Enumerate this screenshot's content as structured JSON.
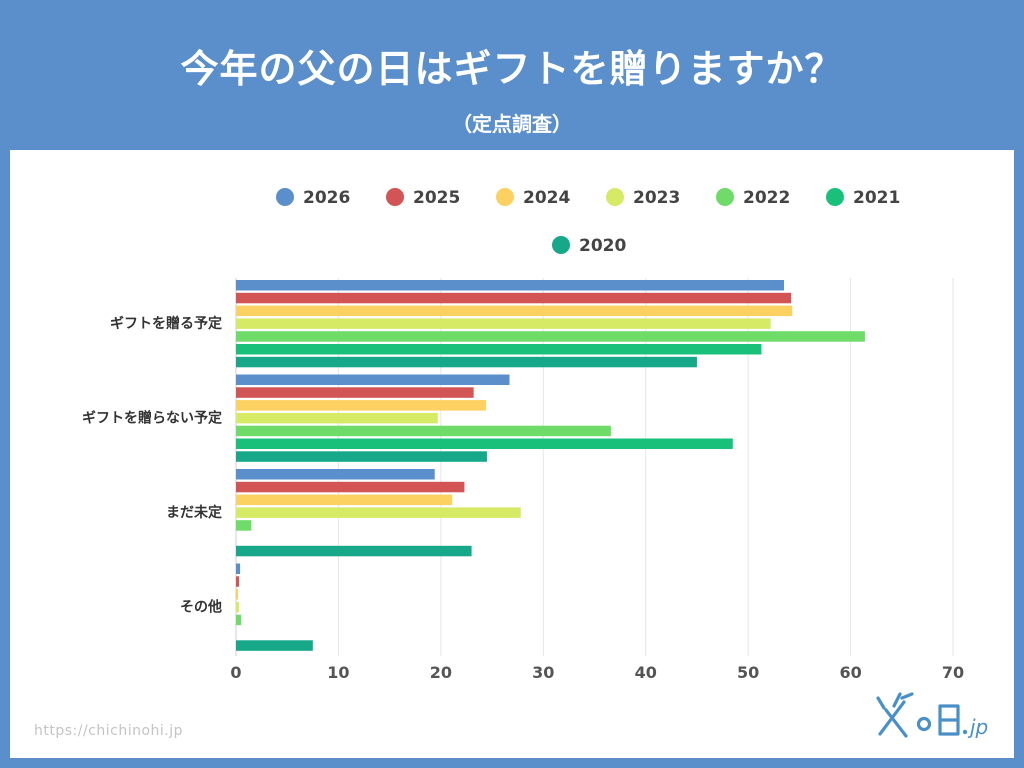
{
  "header": {
    "title": "今年の父の日はギフトを贈りますか？",
    "subtitle": "（定点調査）"
  },
  "footer": {
    "url": "https://chichinohi.jp",
    "logo_text": "父の日.jp"
  },
  "colors": {
    "background": "#5b8fcb",
    "card": "#ffffff",
    "grid": "#e6e6e6"
  },
  "chart_data": {
    "type": "bar",
    "orientation": "horizontal",
    "title": "",
    "xlabel": "",
    "ylabel": "",
    "xlim": [
      0,
      70
    ],
    "ticks": [
      0,
      10,
      20,
      30,
      40,
      50,
      60,
      70
    ],
    "grid": true,
    "legend_position": "top",
    "categories": [
      "ギフトを贈る予定",
      "ギフトを贈らない予定",
      "まだ未定",
      "その他"
    ],
    "series": [
      {
        "name": "2026",
        "color": "#5b8fcb",
        "values": [
          53.5,
          26.7,
          19.4,
          0.4
        ]
      },
      {
        "name": "2025",
        "color": "#d35454",
        "values": [
          54.2,
          23.2,
          22.3,
          0.3
        ]
      },
      {
        "name": "2024",
        "color": "#fcd061",
        "values": [
          54.3,
          24.4,
          21.1,
          0.2
        ]
      },
      {
        "name": "2023",
        "color": "#d6ea66",
        "values": [
          52.2,
          19.7,
          27.8,
          0.3
        ]
      },
      {
        "name": "2022",
        "color": "#6fdb68",
        "values": [
          61.4,
          36.6,
          1.5,
          0.5
        ]
      },
      {
        "name": "2021",
        "color": "#19c079",
        "values": [
          51.3,
          48.5,
          0,
          0
        ]
      },
      {
        "name": "2020",
        "color": "#17a88a",
        "values": [
          45.0,
          24.5,
          23.0,
          7.5
        ]
      }
    ]
  }
}
